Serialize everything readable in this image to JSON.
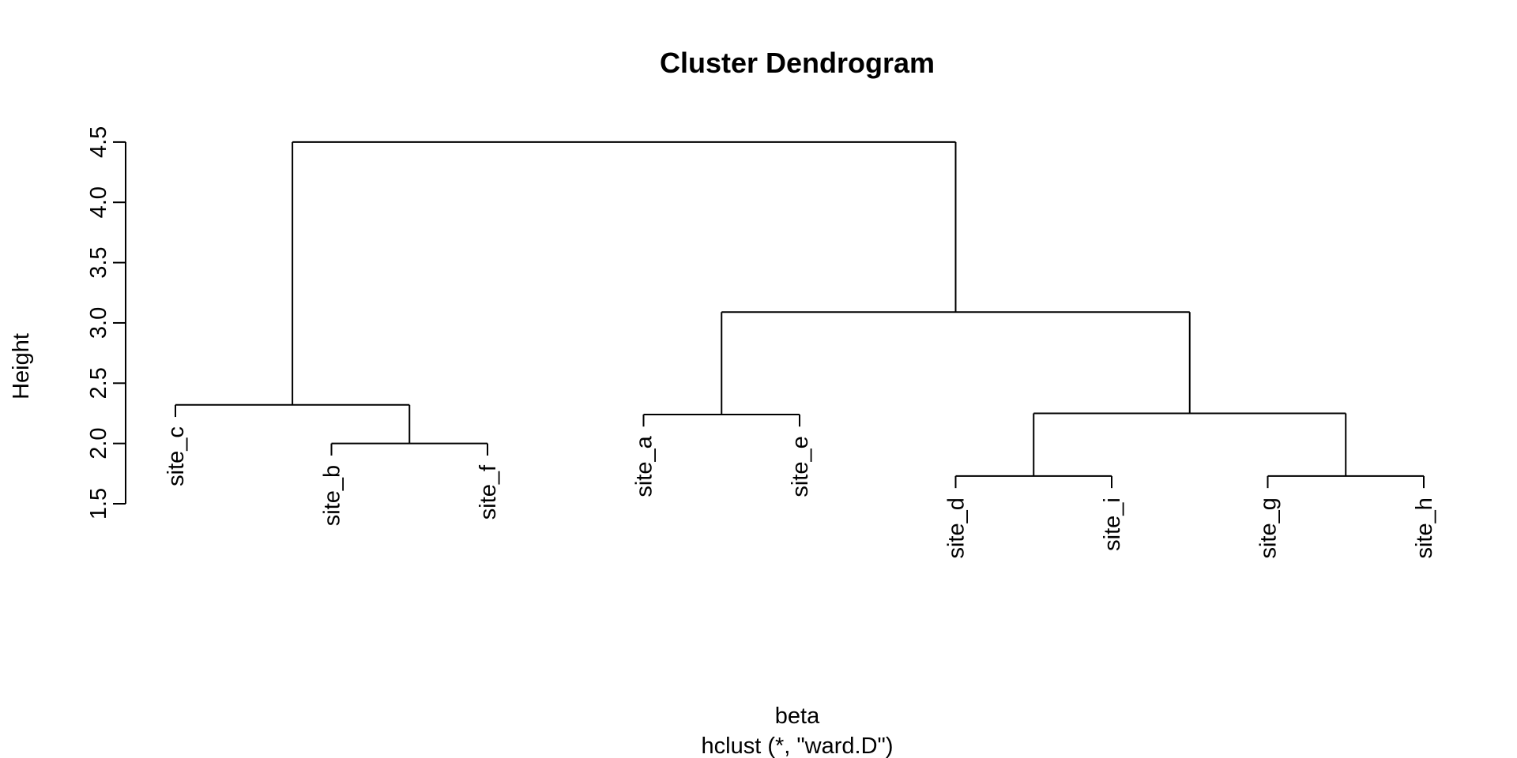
{
  "chart_data": {
    "type": "dendrogram",
    "title": "Cluster Dendrogram",
    "xlabel": "beta",
    "sublabel": "hclust (*, \"ward.D\")",
    "ylabel": "Height",
    "ylim": [
      1.5,
      4.5
    ],
    "yticks": [
      "1.5",
      "2.0",
      "2.5",
      "3.0",
      "3.5",
      "4.0",
      "4.5"
    ],
    "leaves": [
      "site_c",
      "site_b",
      "site_f",
      "site_a",
      "site_e",
      "site_d",
      "site_i",
      "site_g",
      "site_h"
    ],
    "merges": [
      {
        "left": "site_b",
        "right": "site_f",
        "height": 2.0
      },
      {
        "left": "site_c",
        "right": "site_b+site_f",
        "height": 2.32
      },
      {
        "left": "site_a",
        "right": "site_e",
        "height": 2.24
      },
      {
        "left": "site_d",
        "right": "site_i",
        "height": 1.73
      },
      {
        "left": "site_g",
        "right": "site_h",
        "height": 1.73
      },
      {
        "left": "site_d+site_i",
        "right": "site_g+site_h",
        "height": 2.25
      },
      {
        "left": "site_a+site_e",
        "right": "site_d+site_i+site_g+site_h",
        "height": 3.09
      },
      {
        "left": "site_c+site_b+site_f",
        "right": "site_a+site_e+site_d+site_i+site_g+site_h",
        "height": 4.5
      }
    ],
    "hang_height": 0.1
  }
}
